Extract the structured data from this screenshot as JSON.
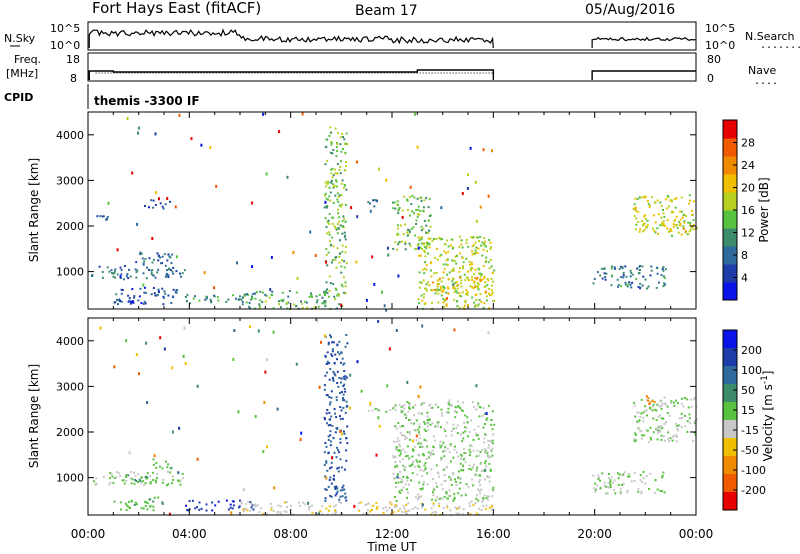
{
  "header": {
    "radar": "Fort Hays East (fitACF)",
    "beam": "Beam 17",
    "date": "05/Aug/2016"
  },
  "panels": {
    "nsky": {
      "label": "N.Sky",
      "left_ticks": [
        "10^5",
        "10^0"
      ],
      "right_ticks": [
        "10^5",
        "10^0"
      ],
      "right_label": "N.Search",
      "right_label_dots": "........"
    },
    "freq": {
      "label": "Freq.",
      "unit": "[MHz]",
      "left_ticks": [
        "18",
        "8"
      ],
      "right_ticks": [
        "80",
        "0"
      ],
      "right_label": "Nave",
      "right_label_dots": "...."
    },
    "cpid": {
      "label": "CPID",
      "program": "themis -3300 IF"
    }
  },
  "time_axis": {
    "title": "Time UT",
    "ticks": [
      "00:00",
      "04:00",
      "08:00",
      "12:00",
      "16:00",
      "20:00",
      "00:00"
    ]
  },
  "colors": {
    "power": [
      "#0a14e6",
      "#1f3da8",
      "#2f6a9c",
      "#3c8c6c",
      "#59c341",
      "#b8d020",
      "#f0c000",
      "#f08a00",
      "#f05a00",
      "#e60000"
    ],
    "velocity": [
      "#0a14e6",
      "#1f3da8",
      "#2f6a9c",
      "#3c8c6c",
      "#59c341",
      "#c8c8c8",
      "#f0c000",
      "#f08a00",
      "#f05a00",
      "#e60000"
    ]
  },
  "chart_data": [
    {
      "type": "heatmap",
      "name": "power",
      "xlabel": "Time UT",
      "ylabel": "Slant Range [km]",
      "xlim": [
        0,
        24
      ],
      "ylim": [
        180,
        4500
      ],
      "yticks": [
        1000,
        2000,
        3000,
        4000
      ],
      "colorbar": {
        "title": "Power [dB]",
        "range": [
          0,
          30
        ],
        "ticks": [
          "4",
          "8",
          "12",
          "16",
          "20",
          "24",
          "28"
        ]
      },
      "regions": [
        {
          "t": [
            0.1,
            3.8
          ],
          "r": [
            850,
            1150
          ],
          "v": 8
        },
        {
          "t": [
            1.5,
            3.3
          ],
          "r": [
            1200,
            1450
          ],
          "v": 7
        },
        {
          "t": [
            1.0,
            3.5
          ],
          "r": [
            300,
            700
          ],
          "v": 6
        },
        {
          "t": [
            3.8,
            6.5
          ],
          "r": [
            300,
            520
          ],
          "v": 11
        },
        {
          "t": [
            0.2,
            0.8
          ],
          "r": [
            2150,
            2250
          ],
          "v": 6
        },
        {
          "t": [
            2.2,
            3.2
          ],
          "r": [
            2400,
            2600
          ],
          "v": 5
        },
        {
          "t": [
            9.3,
            10.2
          ],
          "r": [
            500,
            4200
          ],
          "v": 14
        },
        {
          "t": [
            6.0,
            10.0
          ],
          "r": [
            200,
            600
          ],
          "v": 12
        },
        {
          "t": [
            11.0,
            12.0
          ],
          "r": [
            2450,
            2600
          ],
          "v": 8
        },
        {
          "t": [
            12.0,
            13.5
          ],
          "r": [
            1500,
            2700
          ],
          "v": 14
        },
        {
          "t": [
            13.0,
            16.0
          ],
          "r": [
            200,
            1800
          ],
          "v": 16
        },
        {
          "t": [
            13.5,
            16.0
          ],
          "r": [
            500,
            900
          ],
          "v": 19
        },
        {
          "t": [
            19.9,
            22.8
          ],
          "r": [
            650,
            1150
          ],
          "v": 9
        },
        {
          "t": [
            21.5,
            24.0
          ],
          "r": [
            1800,
            2700
          ],
          "v": 17
        },
        {
          "t": [
            23.0,
            24.0
          ],
          "r": [
            1900,
            2100
          ],
          "v": 20
        }
      ]
    },
    {
      "type": "heatmap",
      "name": "velocity",
      "xlabel": "Time UT",
      "ylabel": "Slant Range [km]",
      "xlim": [
        0,
        24
      ],
      "ylim": [
        180,
        4500
      ],
      "yticks": [
        1000,
        2000,
        3000,
        4000
      ],
      "colorbar": {
        "title": "Velocity [m s^-1]",
        "range": [
          -250,
          250
        ],
        "ticks": [
          "200",
          "100",
          "50",
          "15",
          "-15",
          "-50",
          "-100",
          "-200"
        ]
      },
      "regions": [
        {
          "t": [
            0.1,
            3.8
          ],
          "r": [
            850,
            1150
          ],
          "v": 0
        },
        {
          "t": [
            1.5,
            2.5
          ],
          "r": [
            900,
            1100
          ],
          "v": 60
        },
        {
          "t": [
            2.5,
            3.3
          ],
          "r": [
            1200,
            1450
          ],
          "v": 40
        },
        {
          "t": [
            3.8,
            6.5
          ],
          "r": [
            300,
            520
          ],
          "v": 180
        },
        {
          "t": [
            1.0,
            3.0
          ],
          "r": [
            300,
            600
          ],
          "v": 30
        },
        {
          "t": [
            9.3,
            10.2
          ],
          "r": [
            500,
            4200
          ],
          "v": 150
        },
        {
          "t": [
            6.0,
            10.0
          ],
          "r": [
            200,
            500
          ],
          "v": -30
        },
        {
          "t": [
            11.0,
            12.0
          ],
          "r": [
            2450,
            2600
          ],
          "v": 0
        },
        {
          "t": [
            12.0,
            16.0
          ],
          "r": [
            500,
            2700
          ],
          "v": 0
        },
        {
          "t": [
            10.5,
            16.0
          ],
          "r": [
            200,
            500
          ],
          "v": -40
        },
        {
          "t": [
            19.9,
            22.8
          ],
          "r": [
            650,
            1150
          ],
          "v": 0
        },
        {
          "t": [
            21.5,
            24.0
          ],
          "r": [
            1800,
            2800
          ],
          "v": 0
        },
        {
          "t": [
            22.0,
            22.4
          ],
          "r": [
            2600,
            2850
          ],
          "v": -150
        }
      ]
    }
  ]
}
